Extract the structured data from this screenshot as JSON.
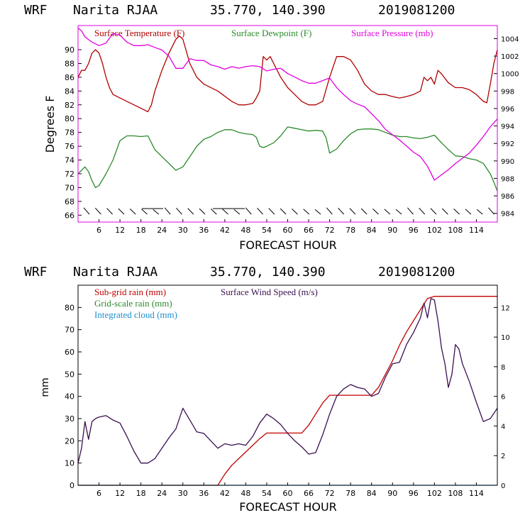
{
  "colors": {
    "temperature": "#b00000",
    "dewpoint": "#2a8a2a",
    "pressure": "#e000e0",
    "wind": "#3a1050",
    "subgrid_rain": "#c00000",
    "gridscale_rain": "#2a8a2a",
    "cloud": "#1a8fd0",
    "axis": "#000000"
  },
  "chart_data": [
    {
      "type": "line",
      "header": {
        "model": "WRF",
        "station": "Narita RJAA",
        "coords": "35.770, 140.390",
        "init": "2019081200"
      },
      "xlabel": "FORECAST HOUR",
      "ylabel": "Degrees F",
      "xlim": [
        0,
        120
      ],
      "ylim": [
        65,
        93.5
      ],
      "y2lim": [
        983,
        1005.5
      ],
      "x_ticks": [
        "6",
        "12",
        "18",
        "24",
        "30",
        "36",
        "42",
        "48",
        "54",
        "60",
        "66",
        "72",
        "78",
        "84",
        "90",
        "96",
        "102",
        "108",
        "114"
      ],
      "y_ticks": [
        "66",
        "68",
        "70",
        "72",
        "74",
        "76",
        "78",
        "80",
        "82",
        "84",
        "86",
        "88",
        "90"
      ],
      "y2_ticks": [
        "984",
        "986",
        "988",
        "990",
        "992",
        "994",
        "996",
        "998",
        "1000",
        "1002",
        "1004"
      ],
      "legend": [
        "Surface Temperature (F)",
        "Surface Dewpoint (F)",
        "Surface Pressure (mb)"
      ],
      "series": [
        {
          "name": "Surface Temperature (F)",
          "x": [
            0,
            1,
            2,
            3,
            4,
            5,
            6,
            7,
            8,
            9,
            10,
            12,
            14,
            16,
            18,
            20,
            21,
            22,
            24,
            26,
            28,
            29,
            30,
            32,
            34,
            36,
            40,
            44,
            46,
            48,
            50,
            51,
            52,
            53,
            54,
            55,
            56,
            58,
            60,
            62,
            64,
            66,
            68,
            70,
            72,
            74,
            76,
            78,
            80,
            82,
            84,
            86,
            88,
            90,
            92,
            94,
            96,
            98,
            99,
            100,
            101,
            102,
            103,
            104,
            106,
            108,
            110,
            112,
            114,
            116,
            117,
            118,
            119,
            120
          ],
          "values": [
            86,
            87,
            87,
            88,
            89.5,
            90,
            89.5,
            88,
            86,
            84.5,
            83.5,
            83,
            82.5,
            82,
            81.5,
            81,
            82,
            84,
            87,
            89.5,
            91.5,
            92,
            91.5,
            88,
            86,
            85,
            84,
            82.5,
            82,
            82,
            82.2,
            83,
            84,
            89,
            88.5,
            89,
            88,
            86,
            84.5,
            83.5,
            82.5,
            82,
            82,
            82.5,
            86,
            89,
            89,
            88.5,
            87,
            85,
            84,
            83.5,
            83.5,
            83.2,
            83,
            83.2,
            83.5,
            84,
            86,
            85.5,
            86,
            85,
            87,
            86.5,
            85.2,
            84.5,
            84.5,
            84.2,
            83.5,
            82.5,
            82.3,
            85,
            88,
            90
          ]
        },
        {
          "name": "Surface Dewpoint (F)",
          "x": [
            0,
            2,
            3,
            4,
            5,
            6,
            8,
            10,
            12,
            14,
            16,
            18,
            20,
            22,
            24,
            26,
            28,
            30,
            32,
            34,
            36,
            38,
            40,
            42,
            44,
            46,
            48,
            50,
            51,
            52,
            53,
            54,
            56,
            58,
            60,
            62,
            64,
            66,
            68,
            70,
            71,
            72,
            74,
            76,
            78,
            80,
            82,
            84,
            86,
            88,
            90,
            92,
            94,
            96,
            98,
            100,
            102,
            104,
            106,
            108,
            110,
            112,
            114,
            116,
            118,
            119,
            120
          ],
          "values": [
            72,
            73,
            72.3,
            71,
            70,
            70.3,
            72,
            74,
            76.8,
            77.5,
            77.5,
            77.4,
            77.5,
            75.5,
            74.5,
            73.5,
            72.5,
            73,
            74.5,
            76,
            77,
            77.4,
            78,
            78.4,
            78.4,
            78,
            77.8,
            77.7,
            77.3,
            76,
            75.8,
            76,
            76.5,
            77.5,
            78.8,
            78.6,
            78.4,
            78.2,
            78.3,
            78.2,
            77.2,
            75,
            75.6,
            76.8,
            77.8,
            78.4,
            78.5,
            78.5,
            78.4,
            78,
            77.6,
            77.4,
            77.4,
            77.2,
            77.1,
            77.3,
            77.6,
            76.5,
            75.5,
            74.6,
            74.5,
            74.2,
            74,
            73.5,
            72,
            70.8,
            69.5
          ]
        },
        {
          "name": "Surface Pressure (mb)",
          "x": [
            0,
            1,
            2,
            4,
            6,
            8,
            10,
            12,
            14,
            16,
            18,
            20,
            22,
            24,
            26,
            28,
            30,
            32,
            34,
            36,
            38,
            40,
            42,
            44,
            46,
            48,
            50,
            52,
            54,
            56,
            58,
            60,
            62,
            64,
            66,
            68,
            70,
            72,
            74,
            76,
            78,
            80,
            82,
            84,
            86,
            88,
            90,
            92,
            94,
            96,
            98,
            100,
            101,
            102,
            104,
            106,
            108,
            110,
            112,
            114,
            116,
            118,
            120
          ],
          "values": [
            1005.2,
            1004.9,
            1004.2,
            1003.6,
            1003.2,
            1003.5,
            1004.6,
            1004.4,
            1003.6,
            1003.2,
            1003.2,
            1003.3,
            1003,
            1002.7,
            1002,
            1000.6,
            1000.6,
            1001.7,
            1001.5,
            1001.5,
            1001,
            1000.8,
            1000.5,
            1000.8,
            1000.6,
            1000.8,
            1000.9,
            1000.8,
            1000.3,
            1000.5,
            1000.6,
            1000,
            999.6,
            999.2,
            998.9,
            998.9,
            999.2,
            999.5,
            998.4,
            997.6,
            996.9,
            996.5,
            996.2,
            995.4,
            994.6,
            993.6,
            993,
            992.4,
            991.7,
            991,
            990.5,
            989.4,
            988.6,
            987.8,
            988.4,
            989,
            989.7,
            990.3,
            990.9,
            991.8,
            992.8,
            993.9,
            994.8
          ]
        }
      ]
    },
    {
      "type": "line",
      "header": {
        "model": "WRF",
        "station": "Narita RJAA",
        "coords": "35.770, 140.390",
        "init": "2019081200"
      },
      "xlabel": "FORECAST HOUR",
      "ylabel": "mm",
      "xlim": [
        0,
        120
      ],
      "ylim": [
        0,
        90
      ],
      "y2lim": [
        0,
        13.5
      ],
      "x_ticks": [
        "6",
        "12",
        "18",
        "24",
        "30",
        "36",
        "42",
        "48",
        "54",
        "60",
        "66",
        "72",
        "78",
        "84",
        "90",
        "96",
        "102",
        "108",
        "114"
      ],
      "y_ticks": [
        "0",
        "10",
        "20",
        "30",
        "40",
        "50",
        "60",
        "70",
        "80"
      ],
      "y2_ticks": [
        "0",
        "2",
        "4",
        "6",
        "8",
        "10",
        "12"
      ],
      "legend": [
        "Sub-grid rain (mm)",
        "Surface Wind Speed (m/s)",
        "Grid-scale rain (mm)",
        "Integrated cloud (mm)"
      ],
      "series": [
        {
          "name": "Sub-grid rain (mm)",
          "x": [
            0,
            40,
            42,
            44,
            46,
            48,
            50,
            52,
            54,
            56,
            58,
            60,
            62,
            64,
            66,
            68,
            70,
            72,
            74,
            76,
            78,
            80,
            82,
            84,
            86,
            88,
            90,
            92,
            94,
            96,
            98,
            100,
            102,
            104,
            106,
            108,
            110,
            112,
            114,
            116,
            118,
            120
          ],
          "values": [
            0,
            0,
            5,
            9,
            12,
            15,
            18,
            21,
            23.5,
            23.5,
            23.5,
            23.5,
            23.5,
            23.5,
            27,
            32,
            37,
            40.5,
            40.5,
            40.5,
            40.5,
            40.5,
            40.5,
            40.5,
            44,
            50,
            56,
            63,
            69,
            74,
            79,
            84,
            85,
            85,
            85,
            85,
            85,
            85,
            85,
            85,
            85,
            85
          ]
        },
        {
          "name": "Surface Wind Speed (m/s)",
          "x": [
            0,
            1,
            2,
            3,
            4,
            5,
            6,
            8,
            10,
            12,
            14,
            16,
            18,
            20,
            22,
            24,
            26,
            28,
            30,
            32,
            34,
            36,
            38,
            40,
            42,
            44,
            46,
            48,
            50,
            52,
            54,
            56,
            58,
            60,
            62,
            64,
            66,
            68,
            70,
            72,
            74,
            76,
            78,
            80,
            82,
            84,
            86,
            88,
            90,
            92,
            94,
            96,
            98,
            99,
            100,
            101,
            102,
            103,
            104,
            105,
            106,
            107,
            108,
            109,
            110,
            112,
            114,
            116,
            118,
            120
          ],
          "values": [
            1.5,
            2.5,
            4.3,
            3.1,
            4.3,
            4.5,
            4.6,
            4.7,
            4.4,
            4.2,
            3.3,
            2.3,
            1.5,
            1.5,
            1.8,
            2.5,
            3.2,
            3.8,
            5.2,
            4.4,
            3.6,
            3.5,
            3,
            2.5,
            2.8,
            2.7,
            2.8,
            2.7,
            3.3,
            4.2,
            4.8,
            4.5,
            4.1,
            3.5,
            3,
            2.6,
            2.1,
            2.2,
            3.4,
            4.8,
            6,
            6.5,
            6.8,
            6.6,
            6.5,
            6,
            6.2,
            7.3,
            8.2,
            8.3,
            9.5,
            10.3,
            11.3,
            12.3,
            11.3,
            12.6,
            12.5,
            11.1,
            9.3,
            8.2,
            6.6,
            7.5,
            9.5,
            9.2,
            8.2,
            7,
            5.6,
            4.3,
            4.5,
            5.2
          ]
        },
        {
          "name": "Integrated cloud (mm)",
          "x": [
            0,
            120
          ],
          "values": [
            0,
            0
          ]
        }
      ]
    }
  ]
}
